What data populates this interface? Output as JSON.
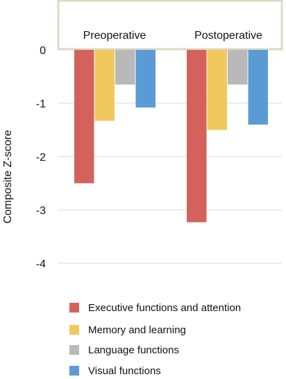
{
  "chart_data": {
    "type": "bar",
    "title": "",
    "xlabel": "",
    "ylabel": "Composite Z-score",
    "ylim": [
      -4,
      0
    ],
    "yticks": [
      0,
      -1,
      -2,
      -3,
      -4
    ],
    "categories": [
      "Preoperative",
      "Postoperative"
    ],
    "x_labels_position": "top",
    "grid": true,
    "legend_position": "bottom",
    "series": [
      {
        "name": "Executive functions and attention",
        "color": "#d4625c",
        "values": [
          -2.5,
          -3.23
        ]
      },
      {
        "name": "Memory and learning",
        "color": "#efc95e",
        "values": [
          -1.33,
          -1.5
        ]
      },
      {
        "name": "Language functions",
        "color": "#b9b9b9",
        "values": [
          -0.65,
          -0.65
        ]
      },
      {
        "name": "Visual functions",
        "color": "#5b9bd5",
        "values": [
          -1.08,
          -1.4
        ]
      }
    ]
  }
}
